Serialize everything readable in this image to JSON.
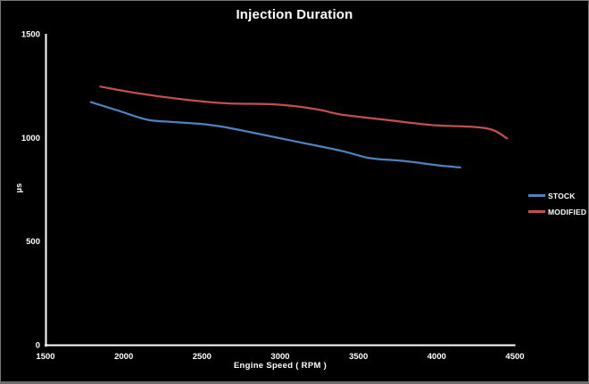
{
  "window": {
    "background": "#000000",
    "frame_color": "#757575"
  },
  "chart_data": {
    "type": "line",
    "title": "Injection Duration",
    "xlabel": "Engine Speed ( RPM )",
    "ylabel": "µs",
    "xlim": [
      1500,
      4500
    ],
    "ylim": [
      0,
      1500
    ],
    "x_ticks": [
      1500,
      2000,
      2500,
      3000,
      3500,
      4000,
      4500
    ],
    "y_ticks": [
      0,
      500,
      1000,
      1500
    ],
    "grid": false,
    "smooth_lines": true,
    "legend_position": "right",
    "plot_bg": "#000000",
    "axis_color": "#ffffff",
    "text_color": "#ffffff",
    "series": [
      {
        "name": "STOCK",
        "color": "#4F81BD",
        "points": [
          [
            1790,
            1175
          ],
          [
            1960,
            1135
          ],
          [
            2150,
            1090
          ],
          [
            2300,
            1080
          ],
          [
            2490,
            1070
          ],
          [
            2640,
            1055
          ],
          [
            2810,
            1030
          ],
          [
            3100,
            985
          ],
          [
            3390,
            940
          ],
          [
            3570,
            905
          ],
          [
            3730,
            895
          ],
          [
            3860,
            885
          ],
          [
            4010,
            870
          ],
          [
            4150,
            860
          ]
        ]
      },
      {
        "name": "MODIFIED",
        "color": "#C0504D",
        "points": [
          [
            1850,
            1250
          ],
          [
            2070,
            1220
          ],
          [
            2360,
            1190
          ],
          [
            2640,
            1170
          ],
          [
            2930,
            1165
          ],
          [
            3100,
            1155
          ],
          [
            3270,
            1135
          ],
          [
            3390,
            1115
          ],
          [
            3670,
            1090
          ],
          [
            3960,
            1065
          ],
          [
            4240,
            1055
          ],
          [
            4360,
            1040
          ],
          [
            4450,
            1000
          ]
        ]
      }
    ]
  }
}
